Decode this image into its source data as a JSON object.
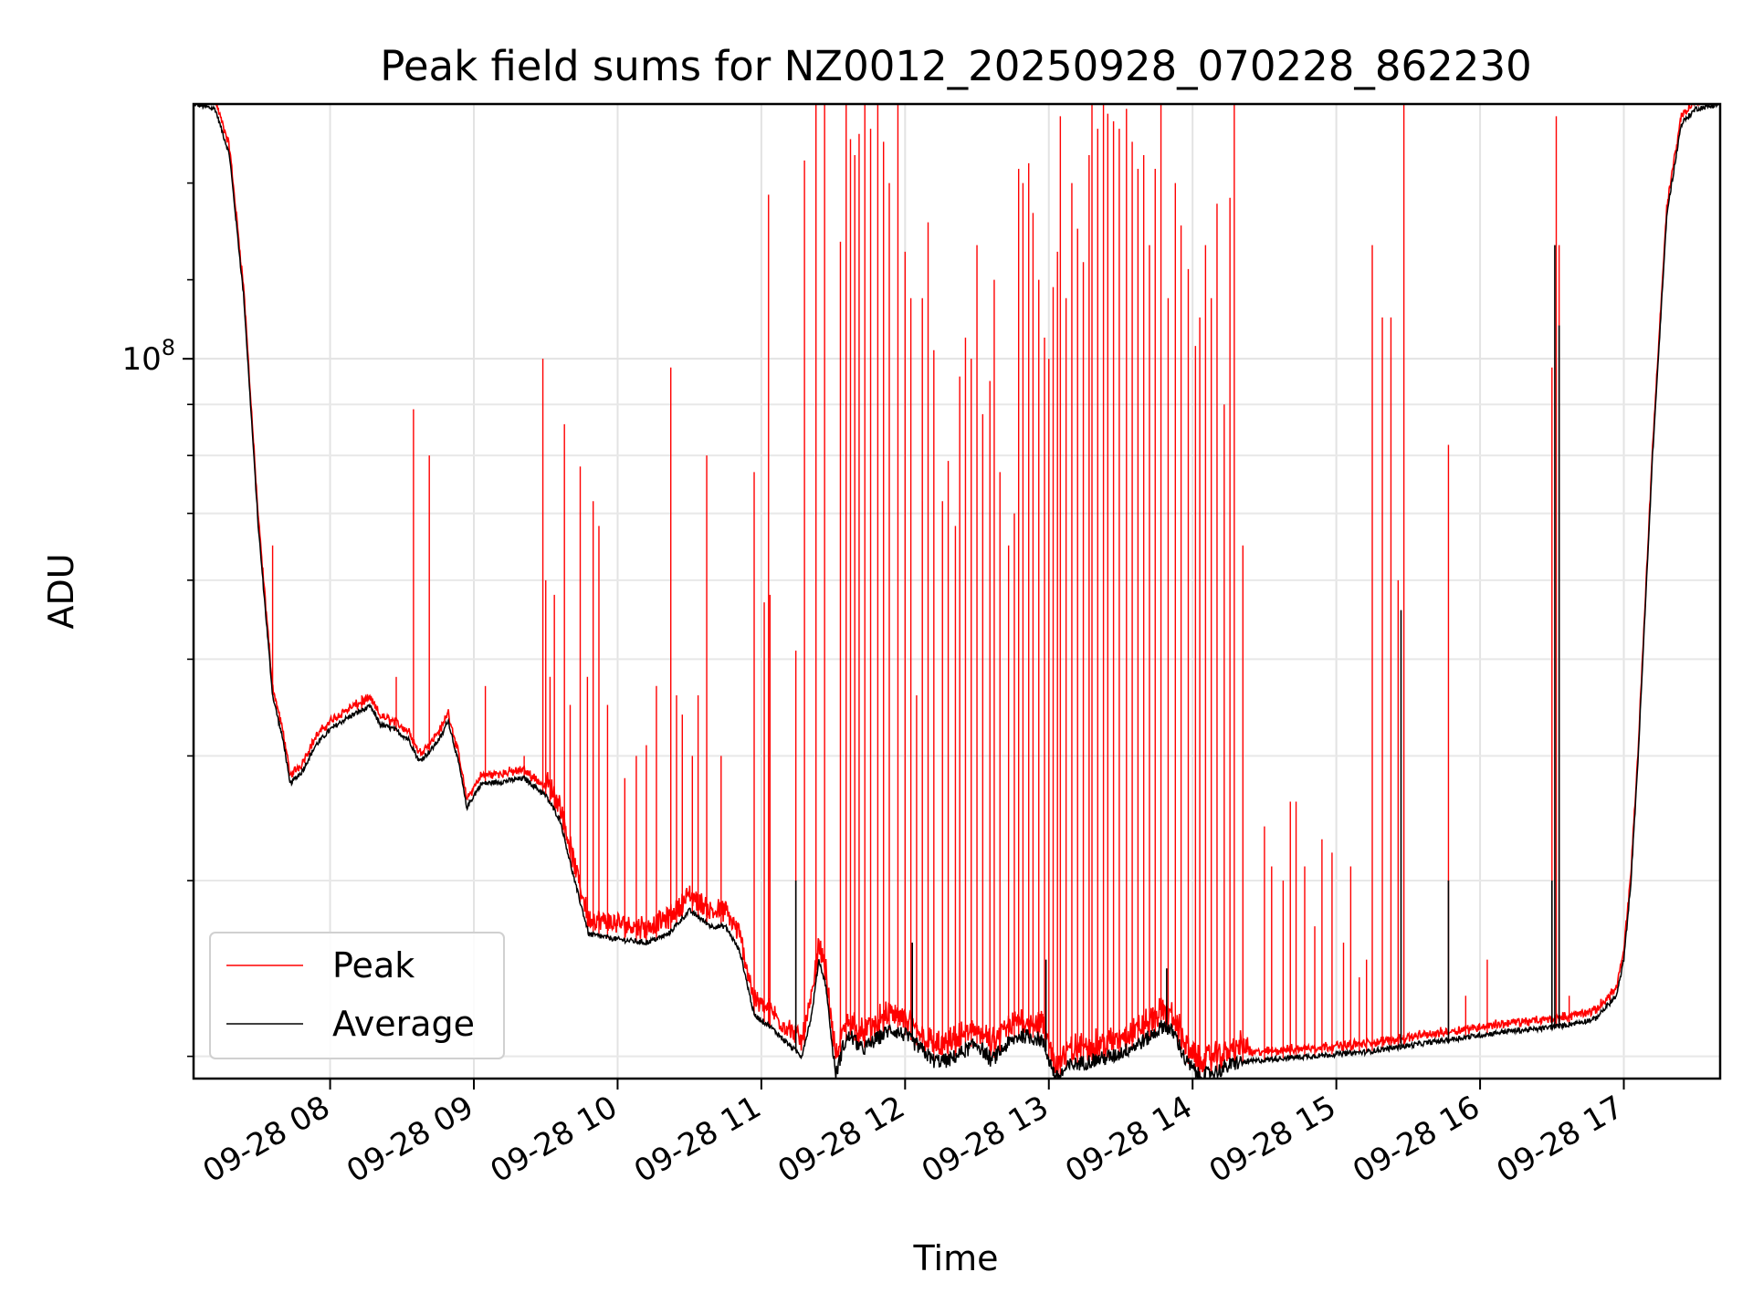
{
  "chart_data": {
    "type": "line",
    "title": "Peak field sums for NZ0012_20250928_070228_862230",
    "xlabel": "Time",
    "ylabel": "ADU",
    "yscale": "log",
    "ylim": [
      19000000,
      180000000
    ],
    "xlim_hours": [
      7.05,
      17.67
    ],
    "grid": true,
    "legend_position": "lower-left",
    "x_ticks": [
      {
        "hour": 8,
        "label": "09-28 08"
      },
      {
        "hour": 9,
        "label": "09-28 09"
      },
      {
        "hour": 10,
        "label": "09-28 10"
      },
      {
        "hour": 11,
        "label": "09-28 11"
      },
      {
        "hour": 12,
        "label": "09-28 12"
      },
      {
        "hour": 13,
        "label": "09-28 13"
      },
      {
        "hour": 14,
        "label": "09-28 14"
      },
      {
        "hour": 15,
        "label": "09-28 15"
      },
      {
        "hour": 16,
        "label": "09-28 16"
      },
      {
        "hour": 17,
        "label": "09-28 17"
      }
    ],
    "y_major_ticks": [
      {
        "value": 100000000,
        "label_base": "10",
        "label_exp": "8"
      }
    ],
    "y_minor_ticks": [
      20000000,
      30000000,
      40000000,
      50000000,
      60000000,
      70000000,
      80000000,
      90000000
    ],
    "series": [
      {
        "name": "Peak",
        "color": "#ff0000",
        "baseline": [
          [
            7.05,
            180000000
          ],
          [
            7.2,
            178000000
          ],
          [
            7.3,
            160000000
          ],
          [
            7.4,
            115000000
          ],
          [
            7.5,
            68000000
          ],
          [
            7.6,
            46000000
          ],
          [
            7.68,
            41000000
          ],
          [
            7.72,
            37500000
          ],
          [
            7.8,
            38500000
          ],
          [
            7.9,
            41000000
          ],
          [
            8.0,
            42500000
          ],
          [
            8.1,
            43500000
          ],
          [
            8.2,
            44300000
          ],
          [
            8.28,
            44800000
          ],
          [
            8.35,
            43000000
          ],
          [
            8.45,
            42500000
          ],
          [
            8.55,
            41500000
          ],
          [
            8.62,
            39500000
          ],
          [
            8.7,
            40500000
          ],
          [
            8.78,
            42000000
          ],
          [
            8.82,
            43500000
          ],
          [
            8.9,
            39000000
          ],
          [
            8.95,
            35500000
          ],
          [
            9.05,
            37500000
          ],
          [
            9.2,
            37700000
          ],
          [
            9.35,
            38000000
          ],
          [
            9.5,
            36500000
          ],
          [
            9.6,
            34500000
          ],
          [
            9.7,
            30000000
          ],
          [
            9.8,
            26500000
          ],
          [
            10.0,
            26200000
          ],
          [
            10.2,
            26000000
          ],
          [
            10.35,
            26500000
          ],
          [
            10.5,
            28000000
          ],
          [
            10.65,
            27000000
          ],
          [
            10.75,
            27000000
          ],
          [
            10.85,
            25500000
          ],
          [
            10.95,
            22000000
          ],
          [
            11.05,
            21500000
          ],
          [
            11.2,
            20500000
          ],
          [
            11.28,
            20000000
          ],
          [
            11.35,
            22000000
          ],
          [
            11.4,
            25000000
          ],
          [
            11.45,
            23500000
          ],
          [
            11.5,
            20000000
          ],
          [
            11.52,
            19200000
          ],
          [
            11.57,
            20500000
          ],
          [
            11.62,
            21000000
          ],
          [
            11.7,
            20300000
          ],
          [
            11.8,
            20800000
          ],
          [
            11.9,
            21300000
          ],
          [
            12.0,
            21000000
          ],
          [
            12.1,
            20400000
          ],
          [
            12.2,
            19800000
          ],
          [
            12.3,
            19800000
          ],
          [
            12.4,
            20200000
          ],
          [
            12.5,
            20600000
          ],
          [
            12.6,
            19800000
          ],
          [
            12.7,
            20500000
          ],
          [
            12.8,
            21000000
          ],
          [
            12.95,
            20800000
          ],
          [
            13.05,
            19000000
          ],
          [
            13.15,
            19600000
          ],
          [
            13.3,
            19800000
          ],
          [
            13.45,
            20000000
          ],
          [
            13.6,
            20500000
          ],
          [
            13.7,
            20900000
          ],
          [
            13.8,
            21500000
          ],
          [
            13.88,
            21000000
          ],
          [
            13.95,
            19800000
          ],
          [
            14.05,
            19100000
          ],
          [
            14.2,
            19400000
          ],
          [
            14.3,
            19700000
          ],
          [
            14.45,
            19800000
          ],
          [
            14.6,
            19900000
          ],
          [
            14.8,
            20000000
          ],
          [
            15.0,
            20100000
          ],
          [
            15.2,
            20200000
          ],
          [
            15.4,
            20400000
          ],
          [
            15.6,
            20600000
          ],
          [
            15.8,
            20800000
          ],
          [
            16.0,
            21000000
          ],
          [
            16.2,
            21200000
          ],
          [
            16.4,
            21300000
          ],
          [
            16.6,
            21500000
          ],
          [
            16.8,
            21800000
          ],
          [
            16.95,
            23000000
          ],
          [
            17.0,
            25000000
          ],
          [
            17.05,
            30000000
          ],
          [
            17.1,
            40000000
          ],
          [
            17.2,
            80000000
          ],
          [
            17.3,
            140000000
          ],
          [
            17.4,
            172000000
          ],
          [
            17.5,
            178000000
          ],
          [
            17.67,
            180000000
          ]
        ],
        "spikes": [
          [
            7.6,
            65000000
          ],
          [
            8.22,
            46000000
          ],
          [
            8.46,
            48000000
          ],
          [
            8.58,
            89000000
          ],
          [
            8.69,
            80000000
          ],
          [
            9.08,
            47000000
          ],
          [
            9.35,
            40000000
          ],
          [
            9.48,
            100000000
          ],
          [
            9.5,
            60000000
          ],
          [
            9.53,
            48000000
          ],
          [
            9.56,
            58000000
          ],
          [
            9.63,
            86000000
          ],
          [
            9.67,
            45000000
          ],
          [
            9.74,
            78000000
          ],
          [
            9.79,
            48000000
          ],
          [
            9.83,
            72000000
          ],
          [
            9.87,
            68000000
          ],
          [
            9.93,
            45000000
          ],
          [
            10.05,
            38000000
          ],
          [
            10.13,
            40000000
          ],
          [
            10.2,
            41000000
          ],
          [
            10.27,
            47000000
          ],
          [
            10.37,
            98000000
          ],
          [
            10.41,
            46000000
          ],
          [
            10.45,
            44000000
          ],
          [
            10.52,
            40000000
          ],
          [
            10.56,
            46000000
          ],
          [
            10.62,
            80000000
          ],
          [
            10.72,
            40000000
          ],
          [
            10.95,
            77000000
          ],
          [
            11.02,
            57000000
          ],
          [
            11.06,
            58000000
          ],
          [
            11.05,
            146000000
          ],
          [
            11.24,
            51000000
          ],
          [
            11.3,
            158000000
          ],
          [
            11.38,
            180000000
          ],
          [
            11.44,
            180000000
          ],
          [
            11.55,
            131000000
          ],
          [
            11.59,
            180000000
          ],
          [
            11.62,
            166000000
          ],
          [
            11.65,
            160000000
          ],
          [
            11.68,
            168000000
          ],
          [
            11.72,
            180000000
          ],
          [
            11.76,
            170000000
          ],
          [
            11.81,
            180000000
          ],
          [
            11.85,
            165000000
          ],
          [
            11.89,
            150000000
          ],
          [
            11.95,
            180000000
          ],
          [
            12.0,
            128000000
          ],
          [
            12.04,
            115000000
          ],
          [
            12.08,
            46000000
          ],
          [
            12.12,
            115000000
          ],
          [
            12.16,
            137000000
          ],
          [
            12.2,
            102000000
          ],
          [
            12.26,
            72000000
          ],
          [
            12.3,
            79000000
          ],
          [
            12.35,
            68000000
          ],
          [
            12.38,
            96000000
          ],
          [
            12.42,
            105000000
          ],
          [
            12.46,
            100000000
          ],
          [
            12.5,
            130000000
          ],
          [
            12.54,
            88000000
          ],
          [
            12.59,
            95000000
          ],
          [
            12.62,
            120000000
          ],
          [
            12.66,
            77000000
          ],
          [
            12.72,
            65000000
          ],
          [
            12.76,
            70000000
          ],
          [
            12.79,
            155000000
          ],
          [
            12.82,
            150000000
          ],
          [
            12.86,
            157000000
          ],
          [
            12.89,
            140000000
          ],
          [
            12.93,
            120000000
          ],
          [
            12.97,
            105000000
          ],
          [
            13.0,
            100000000
          ],
          [
            13.03,
            118000000
          ],
          [
            13.06,
            128000000
          ],
          [
            13.08,
            175000000
          ],
          [
            13.12,
            115000000
          ],
          [
            13.16,
            150000000
          ],
          [
            13.2,
            135000000
          ],
          [
            13.24,
            125000000
          ],
          [
            13.28,
            160000000
          ],
          [
            13.3,
            180000000
          ],
          [
            13.34,
            170000000
          ],
          [
            13.38,
            180000000
          ],
          [
            13.41,
            176000000
          ],
          [
            13.45,
            173000000
          ],
          [
            13.49,
            170000000
          ],
          [
            13.54,
            178000000
          ],
          [
            13.58,
            165000000
          ],
          [
            13.62,
            155000000
          ],
          [
            13.66,
            160000000
          ],
          [
            13.7,
            130000000
          ],
          [
            13.74,
            155000000
          ],
          [
            13.78,
            180000000
          ],
          [
            13.83,
            115000000
          ],
          [
            13.88,
            150000000
          ],
          [
            13.92,
            136000000
          ],
          [
            13.97,
            123000000
          ],
          [
            14.02,
            103000000
          ],
          [
            14.05,
            110000000
          ],
          [
            14.09,
            130000000
          ],
          [
            14.13,
            115000000
          ],
          [
            14.17,
            143000000
          ],
          [
            14.22,
            90000000
          ],
          [
            14.26,
            145000000
          ],
          [
            14.29,
            180000000
          ],
          [
            14.35,
            65000000
          ],
          [
            14.5,
            34000000
          ],
          [
            14.55,
            31000000
          ],
          [
            14.63,
            30000000
          ],
          [
            14.68,
            36000000
          ],
          [
            14.72,
            36000000
          ],
          [
            14.78,
            31000000
          ],
          [
            14.85,
            27000000
          ],
          [
            14.9,
            33000000
          ],
          [
            14.97,
            32000000
          ],
          [
            15.05,
            26000000
          ],
          [
            15.1,
            31000000
          ],
          [
            15.16,
            24000000
          ],
          [
            15.21,
            25000000
          ],
          [
            15.25,
            130000000
          ],
          [
            15.32,
            110000000
          ],
          [
            15.38,
            110000000
          ],
          [
            15.43,
            60000000
          ],
          [
            15.47,
            180000000
          ],
          [
            15.78,
            82000000
          ],
          [
            15.9,
            23000000
          ],
          [
            16.05,
            25000000
          ],
          [
            16.5,
            98000000
          ],
          [
            16.53,
            175000000
          ],
          [
            16.55,
            130000000
          ],
          [
            16.62,
            23000000
          ]
        ]
      },
      {
        "name": "Average",
        "color": "#000000",
        "spikes": [
          [
            11.24,
            30000000
          ],
          [
            12.05,
            26000000
          ],
          [
            12.98,
            25000000
          ],
          [
            13.82,
            24500000
          ],
          [
            15.45,
            56000000
          ],
          [
            15.78,
            30000000
          ],
          [
            16.5,
            30000000
          ],
          [
            16.52,
            130000000
          ],
          [
            16.55,
            108000000
          ]
        ]
      }
    ]
  }
}
